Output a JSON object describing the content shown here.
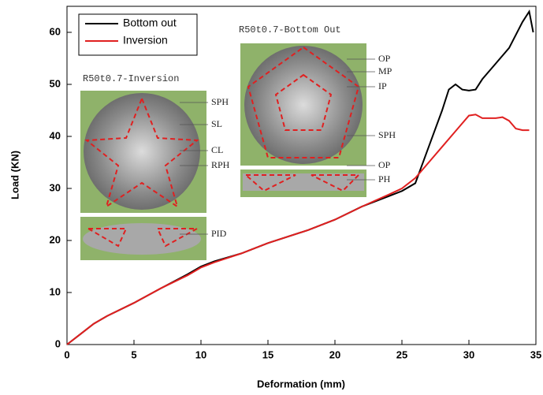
{
  "chart_data": {
    "type": "line",
    "x_label": "Deformation (mm)",
    "y_label": "Load (KN)",
    "xlim": [
      0,
      35
    ],
    "ylim": [
      0,
      65
    ],
    "xticks": [
      0,
      5,
      10,
      15,
      20,
      25,
      30,
      35
    ],
    "yticks": [
      0,
      10,
      20,
      30,
      40,
      50,
      60
    ],
    "legend": "upper left",
    "series": [
      {
        "name": "Bottom out",
        "color": "#000000",
        "x": [
          0,
          1,
          2,
          3,
          5,
          7,
          9,
          10,
          11,
          13,
          15,
          18,
          20,
          22,
          24,
          25,
          26,
          27,
          28,
          28.5,
          29,
          29.5,
          30,
          30.5,
          31,
          32,
          33,
          34,
          34.5,
          34.8
        ],
        "values": [
          0,
          2,
          4,
          5.5,
          8,
          10.8,
          13.5,
          15,
          16,
          17.5,
          19.5,
          22,
          24,
          26.5,
          28.5,
          29.5,
          31,
          38,
          45,
          49,
          50,
          49,
          48.8,
          49,
          51,
          54,
          57,
          62,
          64,
          60
        ]
      },
      {
        "name": "Inversion",
        "color": "#e02020",
        "x": [
          0,
          1,
          2,
          3,
          5,
          7,
          9,
          10,
          11,
          13,
          15,
          18,
          20,
          22,
          24,
          25,
          26,
          27,
          28,
          29,
          30,
          30.5,
          31,
          32,
          32.5,
          33,
          33.5,
          34,
          34.5
        ],
        "values": [
          0,
          2,
          4,
          5.5,
          8,
          10.8,
          13.3,
          14.8,
          15.8,
          17.5,
          19.5,
          22,
          24,
          26.5,
          28.8,
          30,
          32,
          35,
          38,
          41,
          44,
          44.2,
          43.5,
          43.5,
          43.7,
          43,
          41.5,
          41.2,
          41.2
        ]
      }
    ],
    "insets": [
      {
        "title": "R50t0.7-Inversion",
        "labels": [
          "SPH",
          "SL",
          "CL",
          "RPH",
          "PID"
        ]
      },
      {
        "title": "R50t0.7-Bottom Out",
        "labels": [
          "OP",
          "MP",
          "IP",
          "SPH",
          "OP",
          "PH"
        ]
      }
    ]
  }
}
